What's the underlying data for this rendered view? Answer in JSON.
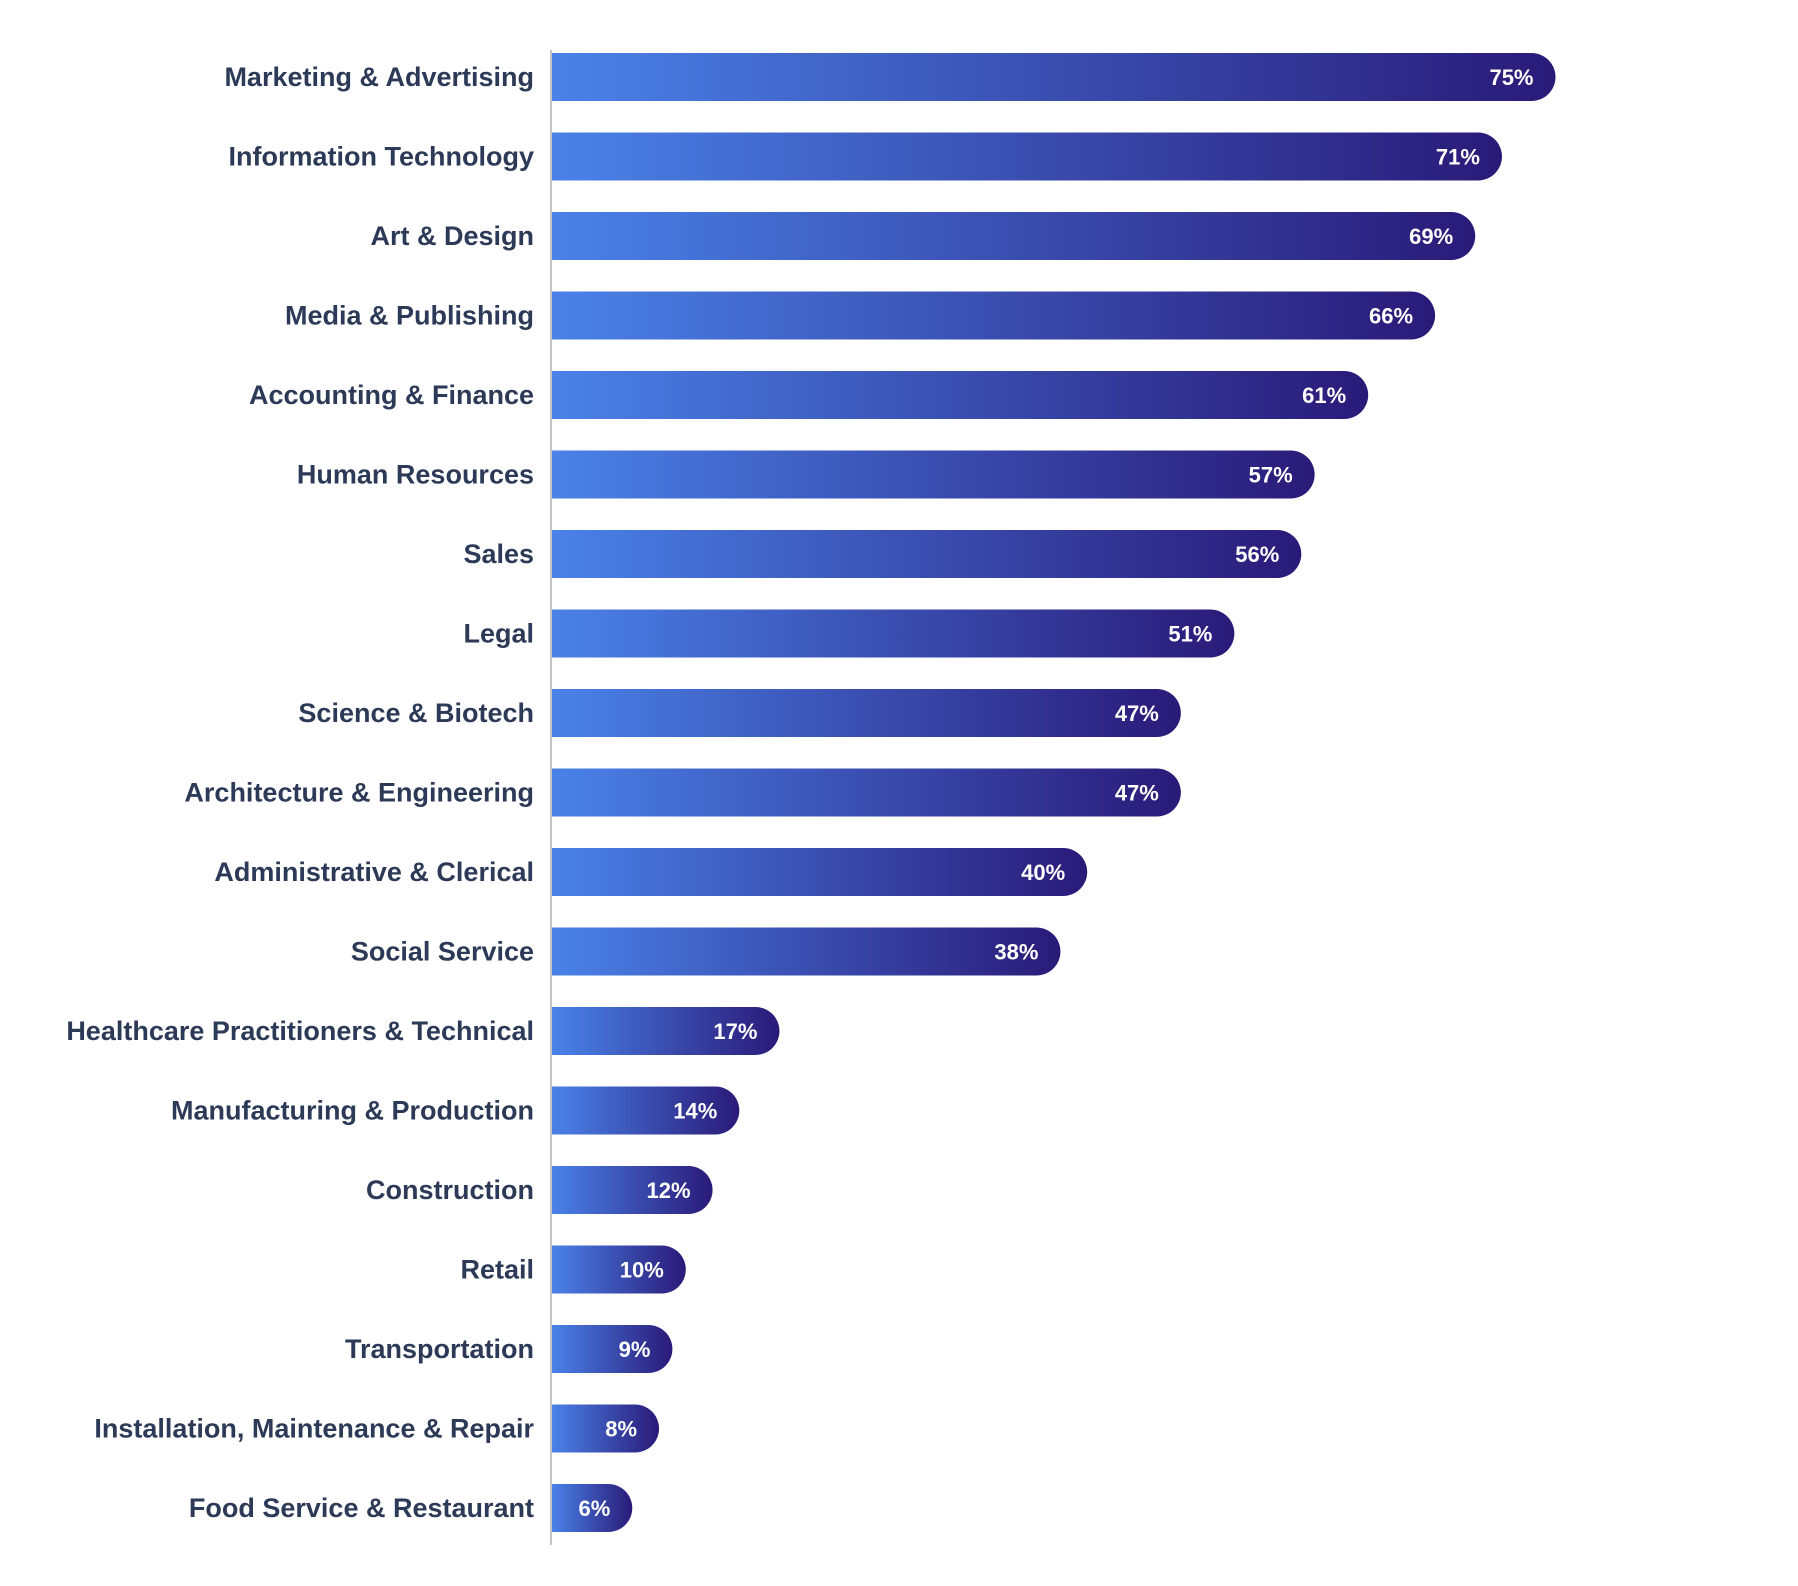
{
  "chart_data": {
    "type": "bar",
    "orientation": "horizontal",
    "categories": [
      "Marketing & Advertising",
      "Information Technology",
      "Art & Design",
      "Media & Publishing",
      "Accounting & Finance",
      "Human Resources",
      "Sales",
      "Legal",
      "Science & Biotech",
      "Architecture & Engineering",
      "Administrative & Clerical",
      "Social Service",
      "Healthcare Practitioners & Technical",
      "Manufacturing & Production",
      "Construction",
      "Retail",
      "Transportation",
      "Installation, Maintenance & Repair",
      "Food Service & Restaurant"
    ],
    "values": [
      75,
      71,
      69,
      66,
      61,
      57,
      56,
      51,
      47,
      47,
      40,
      38,
      17,
      14,
      12,
      10,
      9,
      8,
      6
    ],
    "value_labels": [
      "75%",
      "71%",
      "69%",
      "66%",
      "61%",
      "57%",
      "56%",
      "51%",
      "47%",
      "47%",
      "40%",
      "38%",
      "17%",
      "14%",
      "12%",
      "10%",
      "9%",
      "8%",
      "6%"
    ],
    "title": "",
    "xlabel": "",
    "ylabel": "",
    "xlim": [
      0,
      100
    ],
    "grid": false,
    "legend": "none",
    "colors": {
      "bar_start": "#4a82e8",
      "bar_end": "#2a1a78",
      "axis": "#c4c4c4",
      "label_text": "#2c3a57",
      "value_text": "#ffffff"
    }
  }
}
